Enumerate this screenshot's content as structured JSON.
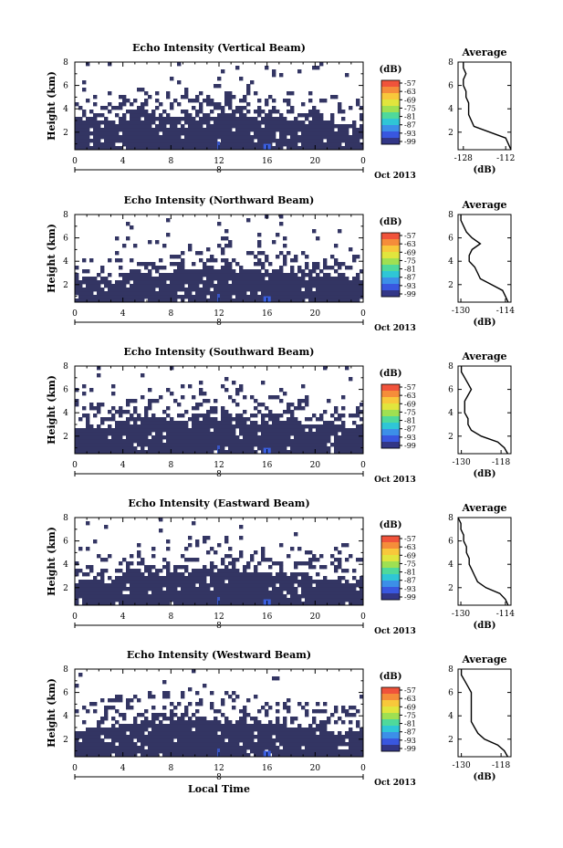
{
  "figure": {
    "xlabel": "Local Time",
    "date_label": "Oct 2013",
    "colorbar_unit": "(dB)",
    "colorbar_ticks": [
      "-57",
      "-63",
      "-69",
      "-75",
      "-81",
      "-87",
      "-93",
      "-99"
    ],
    "colorbar_colors": [
      "#f0533b",
      "#f58d3a",
      "#f8c83b",
      "#e1e53d",
      "#9fe052",
      "#4fd99b",
      "#2fc6d6",
      "#3c8fe8",
      "#3957df",
      "#323686"
    ]
  },
  "chart_data": [
    {
      "type": "heatmap",
      "title": "Echo Intensity (Vertical Beam)",
      "ylabel": "Height (km)",
      "xlabel": "Local Time",
      "x_ticks": [
        "0",
        "4",
        "8",
        "12",
        "16",
        "20",
        "0"
      ],
      "x_day_label": "8",
      "y_ticks": [
        "2",
        "4",
        "6",
        "8"
      ],
      "xlim": [
        0,
        24
      ],
      "ylim": [
        0.5,
        8
      ],
      "echo_top_km": [
        3.0,
        3.1,
        3.1,
        2.8,
        3.5,
        3.6,
        3.6,
        3.3,
        3.2,
        3.3,
        3.4,
        3.5,
        3.3,
        3.8,
        3.4,
        3.0,
        3.2,
        3.3,
        3.1,
        3.0,
        3.0,
        2.9,
        2.8,
        2.7,
        2.6
      ],
      "average_profile": {
        "title": "Average",
        "xlabel": "(dB)",
        "x_ticks": [
          "-128",
          "-112"
        ],
        "xlim": [
          -130,
          -110
        ],
        "y_km": [
          0.5,
          1.0,
          1.5,
          2.0,
          2.5,
          3.0,
          3.5,
          4.0,
          4.5,
          5.0,
          5.5,
          6.0,
          6.5,
          7.0,
          7.5,
          8.0
        ],
        "x_db": [
          -110,
          -111,
          -112,
          -118,
          -124,
          -125,
          -126,
          -126,
          -126,
          -127,
          -127,
          -128,
          -128,
          -127,
          -128,
          -128
        ]
      }
    },
    {
      "type": "heatmap",
      "title": "Echo Intensity (Northward Beam)",
      "ylabel": "Height (km)",
      "xlabel": "Local Time",
      "x_ticks": [
        "0",
        "4",
        "8",
        "12",
        "16",
        "20",
        "0"
      ],
      "x_day_label": "8",
      "y_ticks": [
        "2",
        "4",
        "6",
        "8"
      ],
      "xlim": [
        0,
        24
      ],
      "ylim": [
        0.5,
        8
      ],
      "echo_top_km": [
        2.2,
        2.6,
        2.5,
        2.3,
        3.0,
        3.1,
        3.0,
        2.8,
        2.9,
        3.2,
        3.4,
        3.5,
        3.3,
        3.6,
        3.3,
        3.0,
        3.1,
        3.2,
        3.0,
        2.9,
        2.8,
        2.7,
        2.6,
        2.5,
        2.5
      ],
      "average_profile": {
        "title": "Average",
        "xlabel": "(dB)",
        "x_ticks": [
          "-130",
          "-114"
        ],
        "xlim": [
          -131,
          -112
        ],
        "y_km": [
          0.5,
          1.0,
          1.5,
          2.0,
          2.5,
          3.0,
          3.5,
          4.0,
          4.5,
          5.0,
          5.5,
          6.0,
          6.5,
          7.0,
          7.5,
          8.0
        ],
        "x_db": [
          -113,
          -114,
          -115,
          -119,
          -123,
          -124,
          -125,
          -127,
          -127,
          -126,
          -123,
          -126,
          -128,
          -129,
          -130,
          -130
        ]
      }
    },
    {
      "type": "heatmap",
      "title": "Echo Intensity (Southward Beam)",
      "ylabel": "Height (km)",
      "xlabel": "Local Time",
      "x_ticks": [
        "0",
        "4",
        "8",
        "12",
        "16",
        "20",
        "0"
      ],
      "x_day_label": "8",
      "y_ticks": [
        "2",
        "4",
        "6",
        "8"
      ],
      "xlim": [
        0,
        24
      ],
      "ylim": [
        0.5,
        8
      ],
      "echo_top_km": [
        2.6,
        2.8,
        2.8,
        2.7,
        3.3,
        3.6,
        3.6,
        3.5,
        3.4,
        3.5,
        3.6,
        3.6,
        3.4,
        3.8,
        3.6,
        3.2,
        3.3,
        3.5,
        3.2,
        3.1,
        3.0,
        3.0,
        2.9,
        2.8,
        2.8
      ],
      "average_profile": {
        "title": "Average",
        "xlabel": "(dB)",
        "x_ticks": [
          "-130",
          "-118"
        ],
        "xlim": [
          -131,
          -115
        ],
        "y_km": [
          0.5,
          1.0,
          1.5,
          2.0,
          2.5,
          3.0,
          3.5,
          4.0,
          4.5,
          5.0,
          5.5,
          6.0,
          6.5,
          7.0,
          7.5,
          8.0
        ],
        "x_db": [
          -116,
          -117,
          -119,
          -124,
          -127,
          -128,
          -128,
          -129,
          -129,
          -129,
          -128,
          -127,
          -128,
          -129,
          -130,
          -130
        ]
      }
    },
    {
      "type": "heatmap",
      "title": "Echo Intensity (Eastward Beam)",
      "ylabel": "Height (km)",
      "xlabel": "Local Time",
      "x_ticks": [
        "0",
        "4",
        "8",
        "12",
        "16",
        "20",
        "0"
      ],
      "x_day_label": "8",
      "y_ticks": [
        "2",
        "4",
        "6",
        "8"
      ],
      "xlim": [
        0,
        24
      ],
      "ylim": [
        0.5,
        8
      ],
      "echo_top_km": [
        2.4,
        2.7,
        2.6,
        2.4,
        3.2,
        3.4,
        3.3,
        3.1,
        3.2,
        3.4,
        3.5,
        3.6,
        3.3,
        3.7,
        3.4,
        3.0,
        3.1,
        3.2,
        3.0,
        2.9,
        2.8,
        2.7,
        2.6,
        2.5,
        2.5
      ],
      "average_profile": {
        "title": "Average",
        "xlabel": "(dB)",
        "x_ticks": [
          "-130",
          "-114"
        ],
        "xlim": [
          -131,
          -112
        ],
        "y_km": [
          0.5,
          1.0,
          1.5,
          2.0,
          2.5,
          3.0,
          3.5,
          4.0,
          4.5,
          5.0,
          5.5,
          6.0,
          6.5,
          7.0,
          7.5,
          8.0
        ],
        "x_db": [
          -113,
          -114,
          -116,
          -121,
          -124,
          -125,
          -126,
          -127,
          -127,
          -128,
          -128,
          -129,
          -129,
          -130,
          -130,
          -131
        ]
      }
    },
    {
      "type": "heatmap",
      "title": "Echo Intensity (Westward Beam)",
      "ylabel": "Height (km)",
      "xlabel": "Local Time",
      "x_ticks": [
        "0",
        "4",
        "8",
        "12",
        "16",
        "20",
        "0"
      ],
      "x_day_label": "8",
      "y_ticks": [
        "2",
        "4",
        "6",
        "8"
      ],
      "xlim": [
        0,
        24
      ],
      "ylim": [
        0.5,
        8
      ],
      "echo_top_km": [
        2.5,
        2.9,
        3.0,
        2.7,
        3.3,
        3.5,
        3.4,
        3.2,
        3.3,
        3.5,
        3.6,
        3.7,
        3.4,
        3.8,
        3.5,
        3.1,
        3.2,
        3.3,
        3.1,
        3.0,
        2.9,
        2.8,
        2.7,
        2.6,
        2.6
      ],
      "average_profile": {
        "title": "Average",
        "xlabel": "(dB)",
        "x_ticks": [
          "-130",
          "-118"
        ],
        "xlim": [
          -131,
          -115
        ],
        "y_km": [
          0.5,
          1.0,
          1.5,
          2.0,
          2.5,
          3.0,
          3.5,
          4.0,
          4.5,
          5.0,
          5.5,
          6.0,
          6.5,
          7.0,
          7.5,
          8.0
        ],
        "x_db": [
          -116,
          -117,
          -119,
          -123,
          -125,
          -126,
          -127,
          -127,
          -127,
          -127,
          -127,
          -127,
          -128,
          -129,
          -130,
          -130
        ]
      }
    }
  ]
}
